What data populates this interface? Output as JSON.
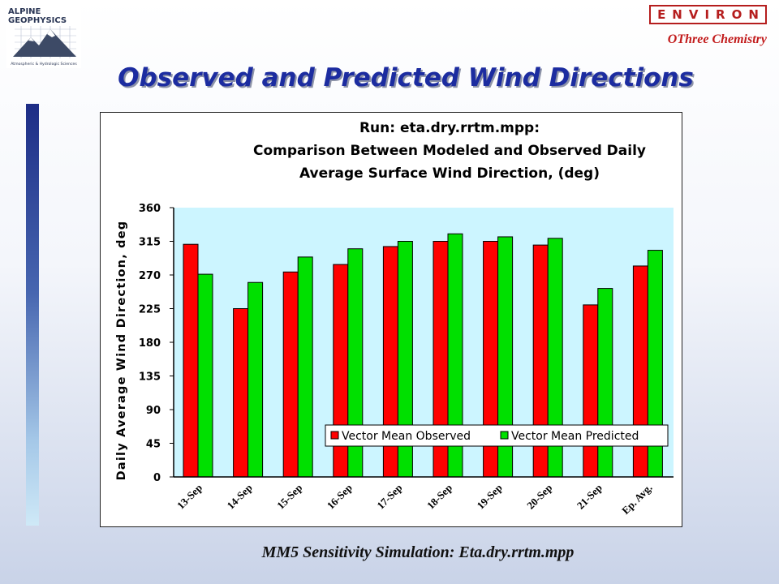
{
  "header": {
    "logo_line1": "ALPINE",
    "logo_line2": "GEOPHYSICS",
    "logo_tagline": "Atmospheric & Hydrologic Sciences",
    "environ": "ENVIRON",
    "othree": "OThree Chemistry"
  },
  "slide_title": "Observed and Predicted Wind Directions",
  "footer": "MM5 Sensitivity Simulation:  Eta.dry.rrtm.mpp",
  "colors": {
    "observed": "#ff0000",
    "predicted": "#00e000",
    "plot_bg": "#ccf5ff",
    "title_blue": "#1c2ca0"
  },
  "chart_data": {
    "type": "bar",
    "title_lines": [
      "Run: eta.dry.rrtm.mpp:",
      "Comparison Between Modeled and Observed Daily",
      "Average Surface Wind Direction, (deg)"
    ],
    "ylabel": "Daily Average Wind Direction, deg",
    "xlabel": "",
    "ylim": [
      0,
      360
    ],
    "yticks": [
      0,
      45,
      90,
      135,
      180,
      225,
      270,
      315,
      360
    ],
    "categories": [
      "13-Sep",
      "14-Sep",
      "15-Sep",
      "16-Sep",
      "17-Sep",
      "18-Sep",
      "19-Sep",
      "20-Sep",
      "21-Sep",
      "Ep. Avg."
    ],
    "series": [
      {
        "name": "Vector Mean Observed",
        "values": [
          311,
          225,
          274,
          284,
          308,
          315,
          315,
          310,
          230,
          282
        ]
      },
      {
        "name": "Vector Mean Predicted",
        "values": [
          271,
          260,
          294,
          305,
          315,
          325,
          321,
          319,
          252,
          303
        ]
      }
    ],
    "grid": false,
    "legend_position": "bottom-right"
  }
}
